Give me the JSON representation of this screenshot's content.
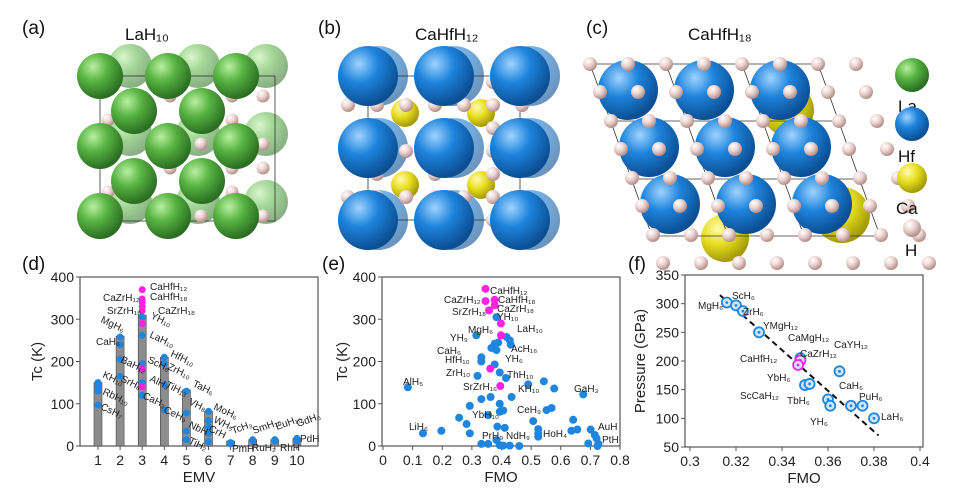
{
  "panels": {
    "a": {
      "label": "(a)",
      "title": "LaH₁₀"
    },
    "b": {
      "label": "(b)",
      "title": "CaHfH₁₂"
    },
    "c": {
      "label": "(c)",
      "title": "CaHfH₁₈"
    },
    "d": {
      "label": "(d)"
    },
    "e": {
      "label": "(e)"
    },
    "f": {
      "label": "(f)"
    }
  },
  "legend": [
    {
      "label": "La",
      "color": "#4fa83d"
    },
    {
      "label": "Hf",
      "color": "#1f7fd6"
    },
    {
      "label": "Ca",
      "color": "#e8df1f"
    },
    {
      "label": "H",
      "color": "#e9c9c6"
    }
  ],
  "colors": {
    "blue": "#1f86e0",
    "magenta": "#ff22e6",
    "bar": "#8c8c8c"
  },
  "chart_data": [
    {
      "panel": "d",
      "type": "bar",
      "xlabel": "EMV",
      "ylabel": "Tc (K)",
      "ylim": [
        0,
        400
      ],
      "yticks": [
        0,
        100,
        200,
        300,
        400
      ],
      "categories": [
        1,
        2,
        3,
        4,
        5,
        6,
        7,
        8,
        9,
        10
      ],
      "values": [
        150,
        260,
        310,
        210,
        133,
        82,
        12,
        15,
        15,
        18
      ],
      "points_blue": [
        [
          1,
          150
        ],
        [
          1,
          140
        ],
        [
          1,
          130
        ],
        [
          1,
          97
        ],
        [
          2,
          258
        ],
        [
          2,
          240
        ],
        [
          2,
          205
        ],
        [
          2,
          165
        ],
        [
          3,
          305
        ],
        [
          3,
          262
        ],
        [
          3,
          195
        ],
        [
          3,
          150
        ],
        [
          3,
          120
        ],
        [
          4,
          210
        ],
        [
          4,
          195
        ],
        [
          4,
          145
        ],
        [
          4,
          85
        ],
        [
          5,
          130
        ],
        [
          5,
          78
        ],
        [
          5,
          35
        ],
        [
          5,
          15
        ],
        [
          6,
          82
        ],
        [
          6,
          60
        ],
        [
          6,
          45
        ],
        [
          6,
          30
        ],
        [
          6,
          10
        ],
        [
          7,
          8
        ],
        [
          7,
          5
        ],
        [
          8,
          15
        ],
        [
          8,
          12
        ],
        [
          9,
          15
        ],
        [
          9,
          12
        ],
        [
          10,
          18
        ],
        [
          10,
          12
        ]
      ],
      "points_magenta": [
        [
          3,
          370
        ],
        [
          3,
          348
        ],
        [
          3,
          340
        ],
        [
          3,
          330
        ],
        [
          3,
          320
        ],
        [
          3,
          290
        ],
        [
          3,
          182
        ],
        [
          3,
          140
        ]
      ],
      "annotations": [
        {
          "text": "CaHfH₁₂",
          "hl": true
        },
        {
          "text": "CaZrH₁₂",
          "hl": true
        },
        {
          "text": "CaHfH₁₈",
          "hl": true
        },
        {
          "text": "SrZrH₁₈",
          "hl": true
        },
        {
          "text": "CaZrH₁₈",
          "hl": true
        },
        {
          "text": "YH₁₀"
        },
        {
          "text": "MgH₆"
        },
        {
          "text": "LaH₁₀"
        },
        {
          "text": "CaH₆"
        },
        {
          "text": "HfH₁₀"
        },
        {
          "text": "BaH₁₂"
        },
        {
          "text": "ScH₆"
        },
        {
          "text": "ZrH₁₀"
        },
        {
          "text": "TaH₆"
        },
        {
          "text": "SrH₆"
        },
        {
          "text": "KH₁₀"
        },
        {
          "text": "AlH₃"
        },
        {
          "text": "TiH₁₃"
        },
        {
          "text": "RbH₁₀"
        },
        {
          "text": "VH₈"
        },
        {
          "text": "CaH₃"
        },
        {
          "text": "CsH₇"
        },
        {
          "text": "CeH₉"
        },
        {
          "text": "MoH₆"
        },
        {
          "text": "WH₅"
        },
        {
          "text": "NbH"
        },
        {
          "text": "CrH"
        },
        {
          "text": "TcH₃"
        },
        {
          "text": "SmH₁₀"
        },
        {
          "text": "EuH₁₀"
        },
        {
          "text": "GdH₆"
        },
        {
          "text": "PdH"
        },
        {
          "text": "TiH₂"
        },
        {
          "text": "PmH"
        },
        {
          "text": "RuH₂"
        },
        {
          "text": "RhH"
        }
      ]
    },
    {
      "panel": "e",
      "type": "scatter",
      "xlabel": "FMO",
      "ylabel": "Tc (K)",
      "xlim": [
        0,
        0.8
      ],
      "ylim": [
        0,
        400
      ],
      "xticks": [
        "0",
        "0.1",
        "0.2",
        "0.3",
        "0.4",
        "0.5",
        "0.6",
        "0.7",
        "0.8"
      ],
      "yticks": [
        0,
        100,
        200,
        300,
        400
      ],
      "points_blue": [
        [
          0.084,
          139
        ],
        [
          0.135,
          30
        ],
        [
          0.197,
          36
        ],
        [
          0.257,
          67
        ],
        [
          0.282,
          52
        ],
        [
          0.293,
          95
        ],
        [
          0.293,
          30
        ],
        [
          0.319,
          166
        ],
        [
          0.315,
          262
        ],
        [
          0.332,
          111
        ],
        [
          0.332,
          5
        ],
        [
          0.355,
          5
        ],
        [
          0.363,
          116
        ],
        [
          0.383,
          227
        ],
        [
          0.366,
          232
        ],
        [
          0.377,
          242
        ],
        [
          0.389,
          245
        ],
        [
          0.332,
          210
        ],
        [
          0.332,
          200
        ],
        [
          0.383,
          305
        ],
        [
          0.377,
          193
        ],
        [
          0.394,
          174
        ],
        [
          0.415,
          161
        ],
        [
          0.394,
          100
        ],
        [
          0.406,
          84
        ],
        [
          0.394,
          81
        ],
        [
          0.386,
          46
        ],
        [
          0.411,
          43
        ],
        [
          0.434,
          116
        ],
        [
          0.417,
          258
        ],
        [
          0.428,
          250
        ],
        [
          0.431,
          240
        ],
        [
          0.355,
          73
        ],
        [
          0.383,
          14
        ],
        [
          0.394,
          2
        ],
        [
          0.406,
          1
        ],
        [
          0.428,
          1
        ],
        [
          0.46,
          0
        ],
        [
          0.49,
          146
        ],
        [
          0.507,
          59
        ],
        [
          0.543,
          153
        ],
        [
          0.578,
          136
        ],
        [
          0.524,
          40
        ],
        [
          0.524,
          30
        ],
        [
          0.524,
          22
        ],
        [
          0.552,
          85
        ],
        [
          0.569,
          90
        ],
        [
          0.642,
          62
        ],
        [
          0.636,
          36
        ],
        [
          0.656,
          39
        ],
        [
          0.676,
          122
        ],
        [
          0.693,
          6
        ],
        [
          0.701,
          39
        ],
        [
          0.715,
          26
        ],
        [
          0.721,
          18
        ],
        [
          0.727,
          5
        ],
        [
          0.724,
          0
        ]
      ],
      "points_magenta": [
        [
          0.346,
          372
        ],
        [
          0.346,
          343
        ],
        [
          0.377,
          346
        ],
        [
          0.377,
          333
        ],
        [
          0.358,
          321
        ],
        [
          0.398,
          290
        ],
        [
          0.398,
          262
        ],
        [
          0.362,
          183
        ],
        [
          0.396,
          142
        ]
      ],
      "annotations": [
        {
          "text": "CaHfH₁₂",
          "hl": true
        },
        {
          "text": "CaZrH₁₂",
          "hl": true
        },
        {
          "text": "CaHfH₁₈",
          "hl": true
        },
        {
          "text": "SrZrH₁₈",
          "hl": true
        },
        {
          "text": "CaZrH₁₈",
          "hl": true
        },
        {
          "text": "YH₁₀"
        },
        {
          "text": "MgH₆"
        },
        {
          "text": "LaH₁₀"
        },
        {
          "text": "YH₉"
        },
        {
          "text": "CaH₆"
        },
        {
          "text": "AcH₁₆"
        },
        {
          "text": "HfH₁₀"
        },
        {
          "text": "YH₆"
        },
        {
          "text": "ZrH₁₀"
        },
        {
          "text": "ThH₁₀"
        },
        {
          "text": "AlH₅"
        },
        {
          "text": "SrZrH₁₆",
          "hl": true
        },
        {
          "text": "KH₁₀"
        },
        {
          "text": "GaH₃"
        },
        {
          "text": "YbH₁₀"
        },
        {
          "text": "CeH₉"
        },
        {
          "text": "LiH₆"
        },
        {
          "text": "HoH₄"
        },
        {
          "text": "AuH"
        },
        {
          "text": "PrH₉"
        },
        {
          "text": "NdH₉"
        },
        {
          "text": "PtH"
        }
      ]
    },
    {
      "panel": "f",
      "type": "scatter",
      "xlabel": "FMO",
      "ylabel": "Pressure (GPa)",
      "xlim": [
        0.3,
        0.4
      ],
      "ylim": [
        50,
        350
      ],
      "xticks": [
        "0.3",
        "0.32",
        "0.34",
        "0.36",
        "0.38",
        "0.4"
      ],
      "yticks": [
        50,
        100,
        150,
        200,
        250,
        300,
        350
      ],
      "fit_line": [
        [
          0.313,
          315
        ],
        [
          0.382,
          70
        ]
      ],
      "points": [
        {
          "name": "MgH₆",
          "x": 0.316,
          "y": 302
        },
        {
          "name": "ScH₆",
          "x": 0.32,
          "y": 297
        },
        {
          "name": "ZrH₆",
          "x": 0.323,
          "y": 287
        },
        {
          "name": "YMgH₁₂",
          "x": 0.33,
          "y": 250
        },
        {
          "name": "CaMgH₁₂",
          "x": 0.348,
          "y": 205
        },
        {
          "name": "CaYH₁₂",
          "x": 0.365,
          "y": 182
        },
        {
          "name": "CaZrH₁₂",
          "x": 0.348,
          "y": 201,
          "hl": true
        },
        {
          "name": "CaHfH₁₂",
          "x": 0.347,
          "y": 193,
          "hl": true
        },
        {
          "name": "YbH₆",
          "x": 0.35,
          "y": 158
        },
        {
          "name": "ScCaH₁₂",
          "x": 0.352,
          "y": 160
        },
        {
          "name": "CaH₆",
          "x": 0.37,
          "y": 122
        },
        {
          "name": "PuH₆",
          "x": 0.375,
          "y": 122
        },
        {
          "name": "TbH₆",
          "x": 0.36,
          "y": 133
        },
        {
          "name": "LaH₆",
          "x": 0.38,
          "y": 100
        },
        {
          "name": "YH₆",
          "x": 0.361,
          "y": 122
        }
      ]
    }
  ]
}
